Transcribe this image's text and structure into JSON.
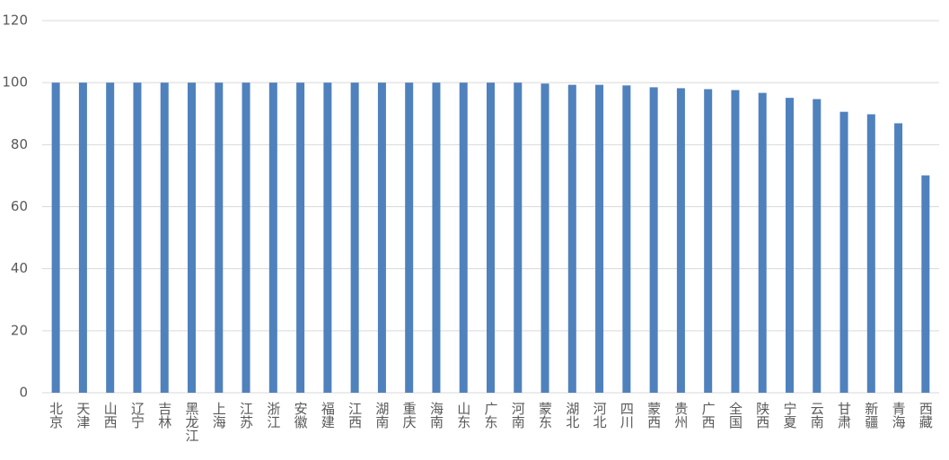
{
  "chart_data": {
    "type": "bar",
    "categories": [
      "北京",
      "天津",
      "山西",
      "辽宁",
      "吉林",
      "黑龙江",
      "上海",
      "江苏",
      "浙江",
      "安徽",
      "福建",
      "江西",
      "湖南",
      "重庆",
      "海南",
      "山东",
      "广东",
      "河南",
      "蒙东",
      "湖北",
      "河北",
      "四川",
      "蒙西",
      "贵州",
      "广西",
      "全国",
      "陕西",
      "宁夏",
      "云南",
      "甘肃",
      "新疆",
      "青海",
      "西藏"
    ],
    "values": [
      100,
      100,
      100,
      100,
      100,
      100,
      100,
      100,
      100,
      100,
      100,
      100,
      100,
      100,
      100,
      100,
      100,
      100,
      99.7,
      99.3,
      99.3,
      99.1,
      98.5,
      98.2,
      97.9,
      97.6,
      96.7,
      95.1,
      94.7,
      90.6,
      89.8,
      86.9,
      70.1
    ],
    "color": "#4f81bd",
    "ylim": [
      0,
      120
    ],
    "yticks": [
      0,
      20,
      40,
      60,
      80,
      100,
      120
    ],
    "grid": true
  }
}
